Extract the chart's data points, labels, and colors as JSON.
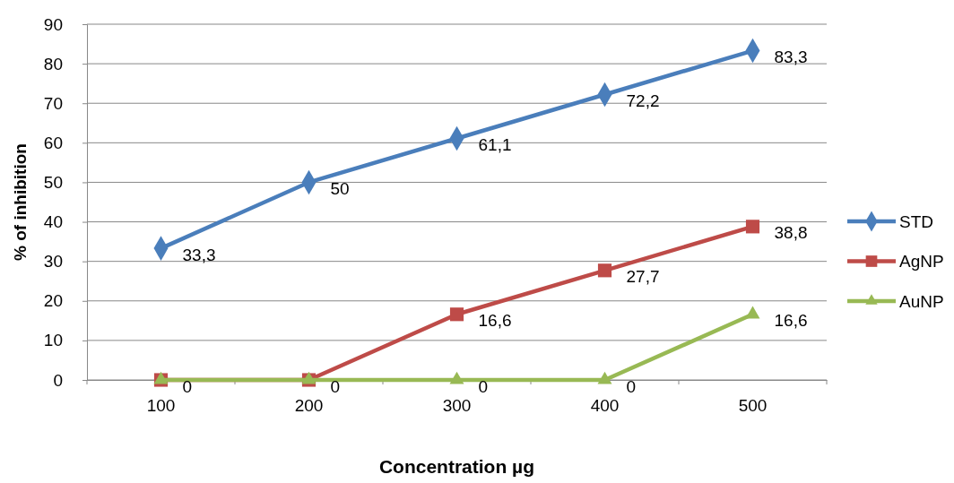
{
  "chart_data": {
    "type": "line",
    "xlabel": "Concentration µg",
    "ylabel": "% of inhibition",
    "categories": [
      "100",
      "200",
      "300",
      "400",
      "500"
    ],
    "ylim": [
      0,
      90
    ],
    "yticks": [
      0,
      10,
      20,
      30,
      40,
      50,
      60,
      70,
      80,
      90
    ],
    "grid": "y",
    "legend": "right",
    "line_style": "solid",
    "series": [
      {
        "name": "STD",
        "color": "#4a7ebb",
        "marker": "diamond",
        "values": [
          33.3,
          50,
          61.1,
          72.2,
          83.3
        ],
        "value_labels": [
          "33,3",
          "50",
          "61,1",
          "72,2",
          "83,3"
        ]
      },
      {
        "name": "AgNP",
        "color": "#be4b48",
        "marker": "square",
        "values": [
          0,
          0,
          16.6,
          27.7,
          38.8
        ],
        "value_labels": [
          null,
          null,
          "16,6",
          "27,7",
          "38,8"
        ]
      },
      {
        "name": "AuNP",
        "color": "#98b954",
        "marker": "triangle",
        "values": [
          0,
          0,
          0,
          0,
          16.6
        ],
        "value_labels": [
          "0",
          "0",
          "0",
          "0",
          "16,6"
        ]
      }
    ]
  }
}
